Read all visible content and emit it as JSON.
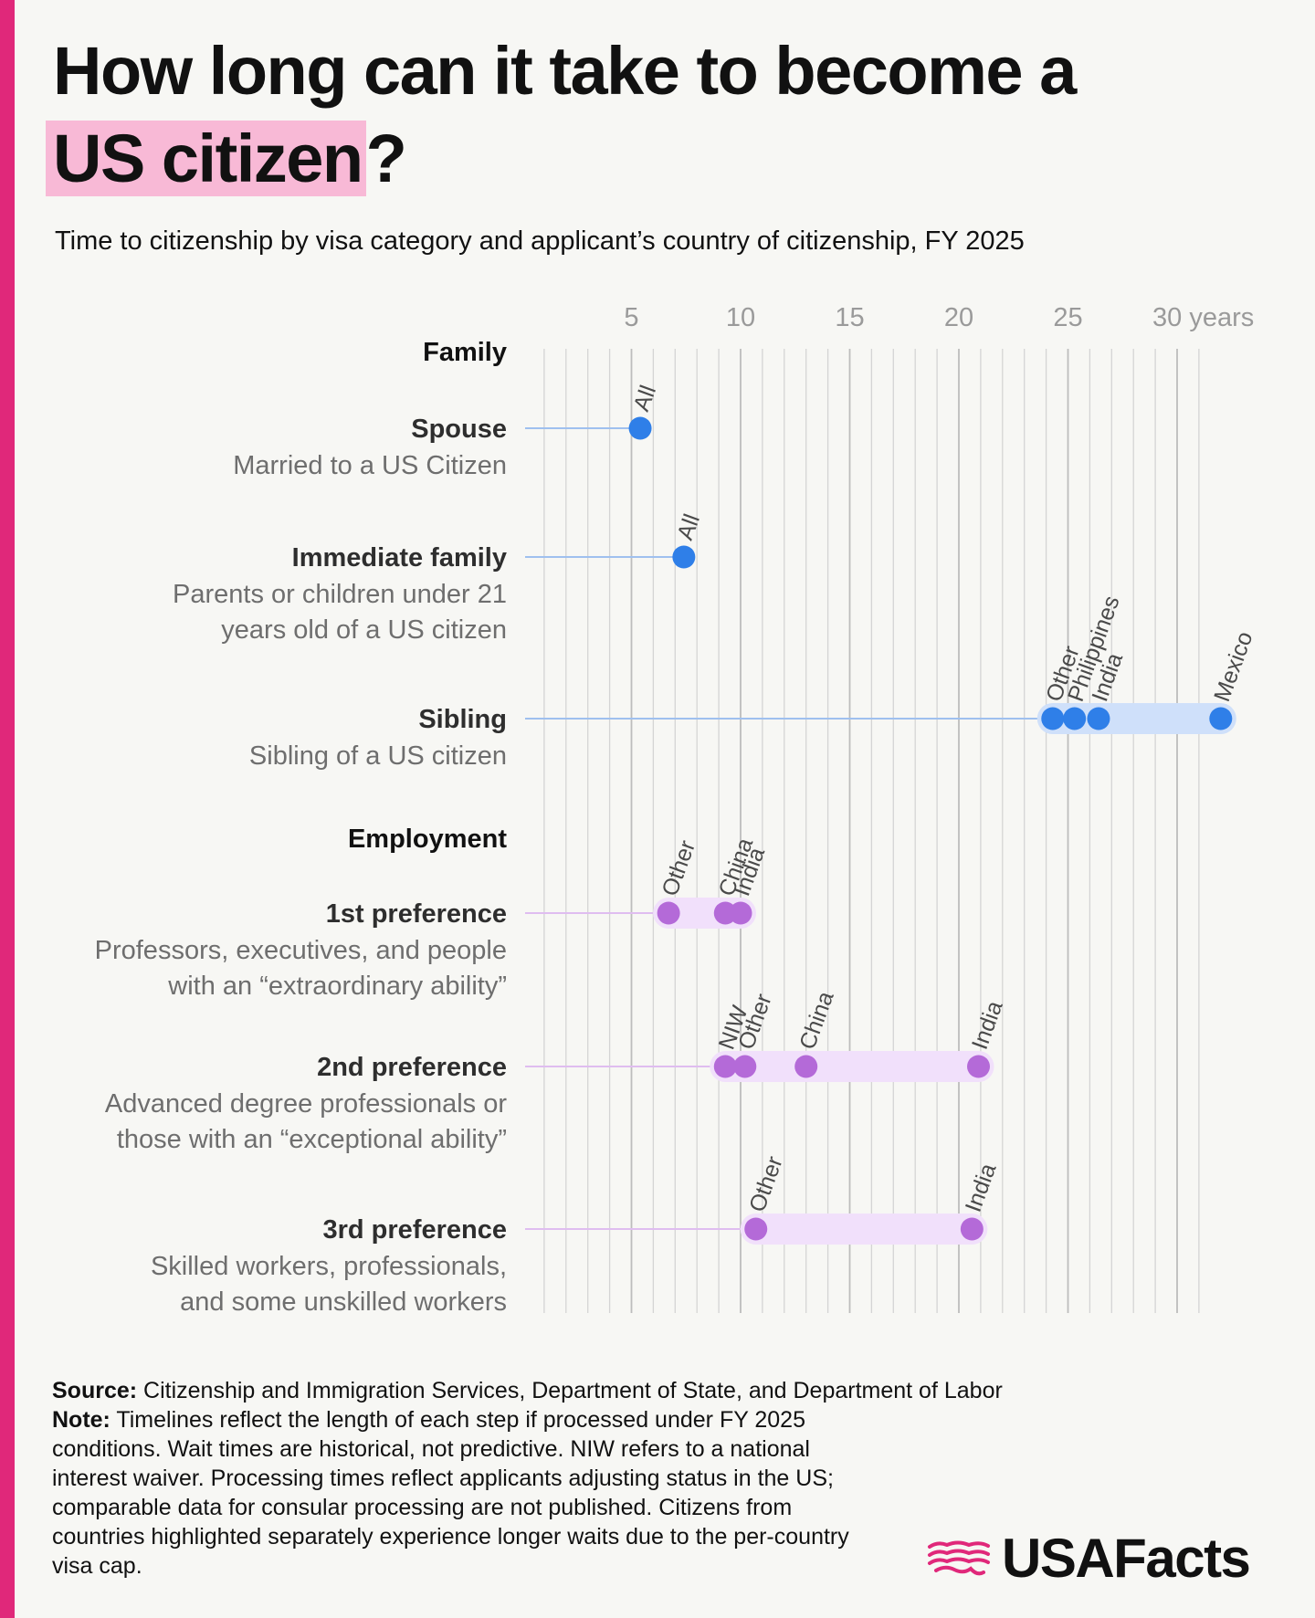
{
  "header": {
    "title_part1": "How long can it take to become a",
    "title_highlight": "US citizen",
    "title_suffix": "?",
    "subtitle": "Time to citizenship by visa category and applicant’s country of citizenship, FY 2025"
  },
  "chart_data": {
    "type": "scatter",
    "xlim": [
      0,
      32
    ],
    "x_ticks": [
      {
        "value": 5,
        "label": "5"
      },
      {
        "value": 10,
        "label": "10"
      },
      {
        "value": 15,
        "label": "15"
      },
      {
        "value": 20,
        "label": "20"
      },
      {
        "value": 25,
        "label": "25"
      },
      {
        "value": 30,
        "label": "30 years"
      }
    ],
    "grid": true,
    "groups": [
      {
        "label": "Family",
        "color": "#2f7fe8",
        "range_color": "#cfe0fa",
        "rows": [
          {
            "label": "Spouse",
            "description": [
              "Married to a US Citizen"
            ],
            "points": [
              {
                "label": "All",
                "value": 5.4
              }
            ]
          },
          {
            "label": "Immediate family",
            "description": [
              "Parents or children under 21",
              "years old of a US citizen"
            ],
            "points": [
              {
                "label": "All",
                "value": 7.4
              }
            ]
          },
          {
            "label": "Sibling",
            "description": [
              "Sibling of a US citizen"
            ],
            "points": [
              {
                "label": "Other",
                "value": 24.3
              },
              {
                "label": "Philippines",
                "value": 25.3
              },
              {
                "label": "India",
                "value": 26.4
              },
              {
                "label": "Mexico",
                "value": 32.0
              }
            ]
          }
        ]
      },
      {
        "label": "Employment",
        "color": "#b46ad8",
        "range_color": "#f1e0fb",
        "rows": [
          {
            "label": "1st preference",
            "description": [
              "Professors, executives, and people",
              "with an “extraordinary ability”"
            ],
            "points": [
              {
                "label": "Other",
                "value": 6.7
              },
              {
                "label": "China",
                "value": 9.3
              },
              {
                "label": "India",
                "value": 10.0
              }
            ]
          },
          {
            "label": "2nd preference",
            "description": [
              "Advanced degree professionals or",
              "those with an “exceptional ability”"
            ],
            "points": [
              {
                "label": "NIW",
                "value": 9.3
              },
              {
                "label": "Other",
                "value": 10.2
              },
              {
                "label": "China",
                "value": 13.0
              },
              {
                "label": "India",
                "value": 20.9
              }
            ]
          },
          {
            "label": "3rd preference",
            "description": [
              "Skilled workers, professionals,",
              "and some unskilled workers"
            ],
            "points": [
              {
                "label": "Other",
                "value": 10.7
              },
              {
                "label": "India",
                "value": 20.6
              }
            ]
          }
        ]
      }
    ]
  },
  "footer": {
    "source_label": "Source:",
    "source_text": "Citizenship and Immigration Services, Department of State, and Department of Labor",
    "note_label": "Note:",
    "note_text": "Timelines reflect the length of each step if processed under FY 2025 conditions. Wait times are historical, not predictive. NIW refers to a national interest waiver. Processing times reflect applicants adjusting status in the US; comparable data for consular processing are not published. Citizens from countries highlighted separately experience longer waits due to the per-country visa cap."
  },
  "logo": {
    "text": "USAFacts",
    "icon": "usa-map-flag-icon"
  }
}
